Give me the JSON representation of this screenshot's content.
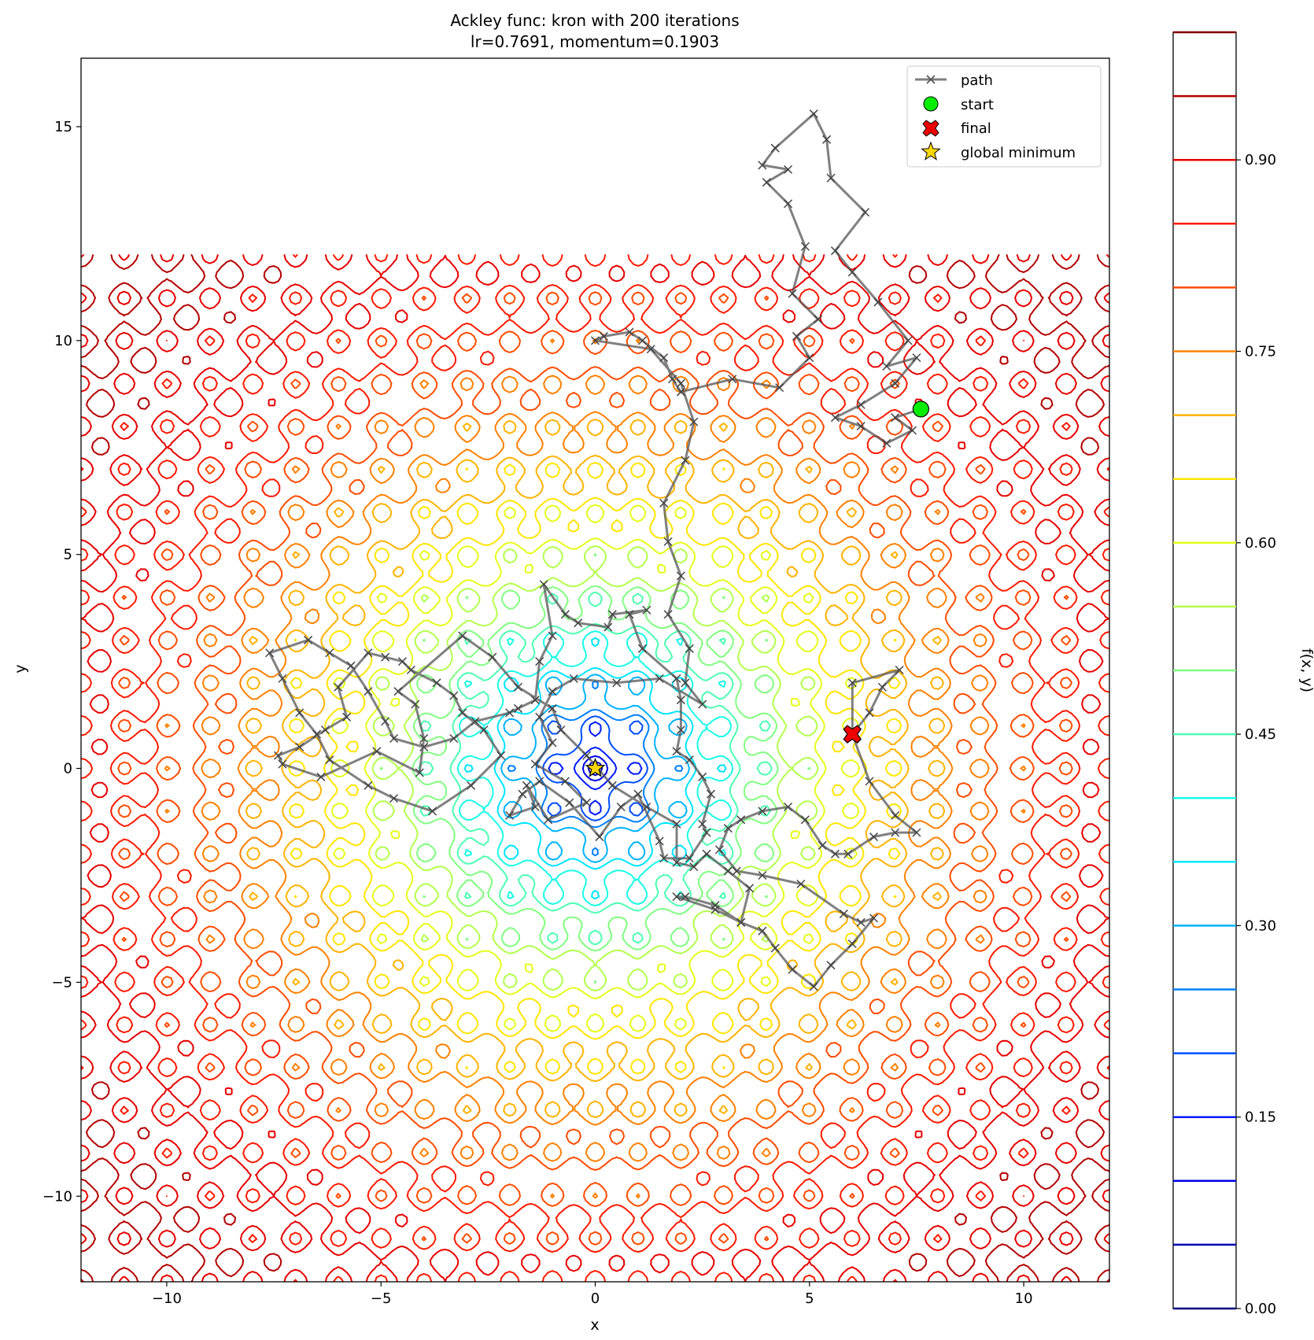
{
  "chart_data": {
    "type": "contour",
    "title": "Ackley func: kron with 200 iterations",
    "subtitle": "lr=0.7691, momentum=0.1903",
    "xlabel": "x",
    "ylabel": "y",
    "xlim": [
      -12,
      12
    ],
    "ylim": [
      -12,
      16.6
    ],
    "x_ticks": [
      -10,
      -5,
      0,
      5,
      10
    ],
    "y_ticks": [
      -10,
      -5,
      0,
      5,
      10,
      15
    ],
    "x_tick_labels": [
      "−10",
      "−5",
      "0",
      "5",
      "10"
    ],
    "y_tick_labels": [
      "−10",
      "−5",
      "0",
      "5",
      "10",
      "15"
    ],
    "contour_domain": {
      "x": [
        -12,
        12
      ],
      "y": [
        -12,
        12
      ]
    },
    "contour_levels": [
      0.0,
      0.05,
      0.1,
      0.15,
      0.2,
      0.25,
      0.3,
      0.35,
      0.4,
      0.45,
      0.5,
      0.55,
      0.6,
      0.65,
      0.7,
      0.75,
      0.8,
      0.85,
      0.9,
      0.95,
      1.0
    ],
    "colormap": "jet",
    "colorbar": {
      "label": "f(x, y)",
      "ticks": [
        0.0,
        0.15,
        0.3,
        0.45,
        0.6,
        0.75,
        0.9
      ],
      "tick_labels": [
        "0.00",
        "0.15",
        "0.30",
        "0.45",
        "0.60",
        "0.75",
        "0.90"
      ],
      "range": [
        0,
        1
      ]
    },
    "legend": {
      "placement": "upper right",
      "entries": [
        {
          "label": "path",
          "marker": "x",
          "color": "#666666"
        },
        {
          "label": "start",
          "marker": "circle",
          "color": "#00ee00"
        },
        {
          "label": "final",
          "marker": "X",
          "color": "#ee0000"
        },
        {
          "label": "global minimum",
          "marker": "star",
          "color": "#ffd700"
        }
      ]
    },
    "start": [
      7.6,
      8.4
    ],
    "final": [
      6.0,
      0.8
    ],
    "global_minimum": [
      0,
      0
    ],
    "path": [
      [
        7.6,
        8.4
      ],
      [
        7.0,
        8.2
      ],
      [
        7.4,
        7.9
      ],
      [
        6.8,
        7.6
      ],
      [
        6.2,
        8.0
      ],
      [
        5.6,
        8.2
      ],
      [
        6.2,
        8.5
      ],
      [
        7.0,
        9.0
      ],
      [
        7.5,
        9.6
      ],
      [
        6.8,
        9.4
      ],
      [
        7.3,
        10.0
      ],
      [
        6.6,
        10.9
      ],
      [
        6.0,
        11.6
      ],
      [
        5.6,
        12.1
      ],
      [
        6.3,
        13.0
      ],
      [
        5.5,
        13.8
      ],
      [
        5.4,
        14.7
      ],
      [
        5.1,
        15.3
      ],
      [
        4.2,
        14.5
      ],
      [
        3.9,
        14.1
      ],
      [
        4.5,
        14.0
      ],
      [
        4.0,
        13.7
      ],
      [
        4.5,
        13.2
      ],
      [
        4.9,
        12.2
      ],
      [
        4.6,
        11.1
      ],
      [
        5.2,
        10.5
      ],
      [
        4.7,
        10.1
      ],
      [
        5.0,
        9.6
      ],
      [
        4.3,
        8.9
      ],
      [
        3.2,
        9.1
      ],
      [
        2.0,
        8.8
      ],
      [
        1.8,
        9.1
      ],
      [
        1.6,
        9.6
      ],
      [
        1.1,
        10.0
      ],
      [
        0.8,
        10.2
      ],
      [
        0.2,
        10.1
      ],
      [
        0.0,
        10.0
      ],
      [
        1.3,
        9.8
      ],
      [
        2.0,
        9.0
      ],
      [
        2.3,
        8.1
      ],
      [
        2.1,
        7.2
      ],
      [
        1.6,
        6.2
      ],
      [
        1.7,
        5.3
      ],
      [
        2.0,
        4.5
      ],
      [
        1.7,
        3.6
      ],
      [
        2.2,
        2.8
      ],
      [
        2.1,
        2.0
      ],
      [
        2.5,
        1.5
      ],
      [
        1.5,
        2.1
      ],
      [
        0.5,
        2.0
      ],
      [
        -0.5,
        2.1
      ],
      [
        -1.0,
        1.8
      ],
      [
        -1.3,
        1.2
      ],
      [
        -1.0,
        0.6
      ],
      [
        -1.4,
        0.1
      ],
      [
        -0.7,
        -0.3
      ],
      [
        -0.2,
        -0.8
      ],
      [
        -1.1,
        -1.2
      ],
      [
        -1.6,
        -0.4
      ],
      [
        -1.4,
        -0.9
      ],
      [
        -2.0,
        -1.1
      ],
      [
        -1.7,
        -0.6
      ],
      [
        -1.3,
        -0.3
      ],
      [
        -0.6,
        -0.8
      ],
      [
        0.1,
        -1.6
      ],
      [
        0.6,
        -0.9
      ],
      [
        1.0,
        -0.6
      ],
      [
        1.5,
        -1.7
      ],
      [
        1.6,
        -2.1
      ],
      [
        2.2,
        -2.1
      ],
      [
        2.6,
        -1.5
      ],
      [
        2.5,
        -1.3
      ],
      [
        2.7,
        -0.6
      ],
      [
        2.5,
        -0.2
      ],
      [
        2.2,
        0.2
      ],
      [
        1.9,
        0.4
      ],
      [
        2.0,
        0.9
      ],
      [
        2.0,
        1.6
      ],
      [
        1.9,
        2.1
      ],
      [
        1.1,
        2.8
      ],
      [
        0.8,
        3.6
      ],
      [
        1.2,
        3.7
      ],
      [
        0.4,
        3.6
      ],
      [
        0.3,
        3.3
      ],
      [
        -0.4,
        3.4
      ],
      [
        -0.7,
        3.6
      ],
      [
        -1.2,
        4.3
      ],
      [
        -1.0,
        3.1
      ],
      [
        -1.3,
        2.5
      ],
      [
        -1.4,
        1.6
      ],
      [
        -1.8,
        1.4
      ],
      [
        -2.0,
        1.3
      ],
      [
        -2.8,
        1.1
      ],
      [
        -3.3,
        0.7
      ],
      [
        -4.0,
        0.5
      ],
      [
        -4.7,
        0.7
      ],
      [
        -4.9,
        1.1
      ],
      [
        -5.3,
        1.8
      ],
      [
        -5.7,
        2.4
      ],
      [
        -6.2,
        2.7
      ],
      [
        -6.7,
        3.0
      ],
      [
        -7.6,
        2.7
      ],
      [
        -7.3,
        2.1
      ],
      [
        -6.9,
        1.3
      ],
      [
        -6.5,
        0.8
      ],
      [
        -6.2,
        0.2
      ],
      [
        -5.3,
        -0.4
      ],
      [
        -4.7,
        -0.7
      ],
      [
        -3.8,
        -1.0
      ],
      [
        -2.9,
        -0.4
      ],
      [
        -2.2,
        0.3
      ],
      [
        -2.6,
        0.9
      ],
      [
        -3.1,
        1.3
      ],
      [
        -3.3,
        1.7
      ],
      [
        -3.7,
        2.0
      ],
      [
        -4.3,
        2.3
      ],
      [
        -4.5,
        2.5
      ],
      [
        -4.9,
        2.6
      ],
      [
        -5.3,
        2.7
      ],
      [
        -6.0,
        1.9
      ],
      [
        -5.8,
        1.2
      ],
      [
        -6.3,
        0.9
      ],
      [
        -6.9,
        0.5
      ],
      [
        -7.4,
        0.3
      ],
      [
        -7.3,
        0.1
      ],
      [
        -6.4,
        -0.2
      ],
      [
        -5.1,
        0.4
      ],
      [
        -4.1,
        -0.1
      ],
      [
        -4.0,
        0.7
      ],
      [
        -4.2,
        1.5
      ],
      [
        -4.6,
        1.8
      ],
      [
        -3.1,
        3.1
      ],
      [
        -2.4,
        2.6
      ],
      [
        -1.8,
        1.9
      ],
      [
        -1.0,
        1.4
      ],
      [
        -0.8,
        0.9
      ],
      [
        -0.2,
        0.3
      ],
      [
        0.4,
        -0.4
      ],
      [
        1.2,
        -0.9
      ],
      [
        1.9,
        -1.3
      ],
      [
        1.9,
        -2.2
      ],
      [
        2.3,
        -2.3
      ],
      [
        2.6,
        -2.0
      ],
      [
        3.1,
        -2.4
      ],
      [
        3.6,
        -2.8
      ],
      [
        3.4,
        -3.6
      ],
      [
        2.8,
        -3.2
      ],
      [
        2.1,
        -3.0
      ],
      [
        1.9,
        -3.0
      ],
      [
        2.8,
        -3.3
      ],
      [
        3.4,
        -3.6
      ],
      [
        3.9,
        -3.8
      ],
      [
        4.2,
        -4.2
      ],
      [
        4.6,
        -4.7
      ],
      [
        5.1,
        -5.1
      ],
      [
        5.5,
        -4.6
      ],
      [
        6.0,
        -4.1
      ],
      [
        6.5,
        -3.5
      ],
      [
        6.2,
        -3.6
      ],
      [
        5.8,
        -3.4
      ],
      [
        4.8,
        -2.7
      ],
      [
        3.9,
        -2.5
      ],
      [
        3.3,
        -2.4
      ],
      [
        2.9,
        -1.9
      ],
      [
        3.1,
        -1.4
      ],
      [
        3.4,
        -1.2
      ],
      [
        3.9,
        -1.0
      ],
      [
        4.5,
        -0.9
      ],
      [
        4.9,
        -1.2
      ],
      [
        5.3,
        -1.8
      ],
      [
        5.6,
        -2.0
      ],
      [
        5.9,
        -2.0
      ],
      [
        6.5,
        -1.6
      ],
      [
        7.0,
        -1.5
      ],
      [
        7.5,
        -1.5
      ],
      [
        7.0,
        -1.1
      ],
      [
        6.4,
        -0.3
      ],
      [
        6.0,
        0.8
      ],
      [
        6.4,
        1.3
      ],
      [
        6.7,
        1.9
      ],
      [
        7.1,
        2.3
      ],
      [
        6.0,
        2.0
      ],
      [
        6.0,
        0.8
      ]
    ]
  }
}
